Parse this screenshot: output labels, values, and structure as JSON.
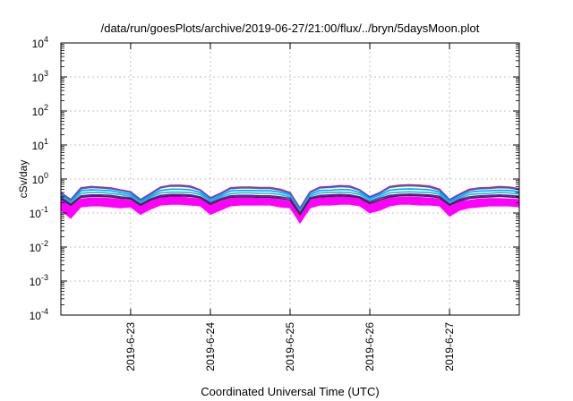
{
  "chart_data": {
    "type": "area",
    "title": "/data/run/goesPlots/archive/2019-06-27/21:00/flux/../bryn/5daysMoon.plot",
    "xlabel": "Coordinated Universal Time (UTC)",
    "ylabel": "cSv/day",
    "y_scale": "log",
    "y_ticks": [
      {
        "base": "10",
        "exp": "-4"
      },
      {
        "base": "10",
        "exp": "-3"
      },
      {
        "base": "10",
        "exp": "-2"
      },
      {
        "base": "10",
        "exp": "-1"
      },
      {
        "base": "10",
        "exp": "0"
      },
      {
        "base": "10",
        "exp": "1"
      },
      {
        "base": "10",
        "exp": "2"
      },
      {
        "base": "10",
        "exp": "3"
      },
      {
        "base": "10",
        "exp": "4"
      }
    ],
    "ylim": [
      0.0001,
      10000
    ],
    "xlim": [
      "2019-06-22T03:00",
      "2019-06-27T21:00"
    ],
    "x_ticks": [
      "2019-6-23",
      "2019-6-24",
      "2019-6-25",
      "2019-6-26",
      "2019-6-27"
    ],
    "grid": true,
    "legend": "none",
    "x": [
      "2019-06-22T03:00",
      "2019-06-22T06:00",
      "2019-06-22T09:00",
      "2019-06-22T12:00",
      "2019-06-22T15:00",
      "2019-06-22T18:00",
      "2019-06-22T21:00",
      "2019-06-23T00:00",
      "2019-06-23T03:00",
      "2019-06-23T06:00",
      "2019-06-23T09:00",
      "2019-06-23T12:00",
      "2019-06-23T15:00",
      "2019-06-23T18:00",
      "2019-06-23T21:00",
      "2019-06-24T00:00",
      "2019-06-24T03:00",
      "2019-06-24T06:00",
      "2019-06-24T09:00",
      "2019-06-24T12:00",
      "2019-06-24T15:00",
      "2019-06-24T18:00",
      "2019-06-24T21:00",
      "2019-06-25T00:00",
      "2019-06-25T03:00",
      "2019-06-25T06:00",
      "2019-06-25T09:00",
      "2019-06-25T12:00",
      "2019-06-25T15:00",
      "2019-06-25T18:00",
      "2019-06-25T21:00",
      "2019-06-26T00:00",
      "2019-06-26T03:00",
      "2019-06-26T06:00",
      "2019-06-26T09:00",
      "2019-06-26T12:00",
      "2019-06-26T15:00",
      "2019-06-26T18:00",
      "2019-06-26T21:00",
      "2019-06-27T00:00",
      "2019-06-27T03:00",
      "2019-06-27T06:00",
      "2019-06-27T09:00",
      "2019-06-27T12:00",
      "2019-06-27T15:00",
      "2019-06-27T18:00",
      "2019-06-27T21:00"
    ],
    "band": {
      "color": "#ff00ff",
      "lower": [
        0.12,
        0.07,
        0.15,
        0.16,
        0.16,
        0.15,
        0.14,
        0.15,
        0.09,
        0.13,
        0.17,
        0.18,
        0.18,
        0.17,
        0.16,
        0.09,
        0.12,
        0.16,
        0.17,
        0.17,
        0.17,
        0.17,
        0.15,
        0.14,
        0.05,
        0.14,
        0.17,
        0.17,
        0.18,
        0.18,
        0.16,
        0.1,
        0.12,
        0.16,
        0.18,
        0.18,
        0.17,
        0.17,
        0.16,
        0.08,
        0.12,
        0.14,
        0.15,
        0.16,
        0.16,
        0.16,
        0.15
      ],
      "upper": [
        0.24,
        0.16,
        0.26,
        0.28,
        0.28,
        0.27,
        0.25,
        0.24,
        0.16,
        0.22,
        0.28,
        0.3,
        0.3,
        0.28,
        0.26,
        0.17,
        0.22,
        0.27,
        0.28,
        0.28,
        0.27,
        0.27,
        0.25,
        0.22,
        0.1,
        0.24,
        0.28,
        0.29,
        0.3,
        0.29,
        0.26,
        0.18,
        0.22,
        0.28,
        0.29,
        0.3,
        0.29,
        0.28,
        0.26,
        0.16,
        0.22,
        0.24,
        0.26,
        0.27,
        0.27,
        0.26,
        0.25
      ]
    },
    "series": [
      {
        "color": "#ff2020",
        "values": [
          0.4,
          0.25,
          0.55,
          0.6,
          0.58,
          0.55,
          0.48,
          0.42,
          0.25,
          0.38,
          0.58,
          0.65,
          0.66,
          0.62,
          0.48,
          0.28,
          0.38,
          0.55,
          0.58,
          0.58,
          0.56,
          0.56,
          0.5,
          0.4,
          0.14,
          0.42,
          0.58,
          0.6,
          0.64,
          0.62,
          0.48,
          0.3,
          0.4,
          0.6,
          0.66,
          0.68,
          0.66,
          0.62,
          0.5,
          0.25,
          0.36,
          0.5,
          0.55,
          0.56,
          0.6,
          0.58,
          0.52
        ]
      },
      {
        "color": "#2060ff",
        "values": [
          0.38,
          0.24,
          0.52,
          0.57,
          0.55,
          0.52,
          0.46,
          0.4,
          0.24,
          0.36,
          0.55,
          0.62,
          0.62,
          0.58,
          0.46,
          0.27,
          0.36,
          0.52,
          0.55,
          0.55,
          0.53,
          0.53,
          0.47,
          0.38,
          0.13,
          0.4,
          0.55,
          0.57,
          0.6,
          0.58,
          0.46,
          0.29,
          0.38,
          0.57,
          0.62,
          0.64,
          0.62,
          0.58,
          0.47,
          0.24,
          0.34,
          0.47,
          0.52,
          0.53,
          0.56,
          0.55,
          0.49
        ]
      },
      {
        "color": "#00a0ff",
        "values": [
          0.35,
          0.22,
          0.45,
          0.48,
          0.47,
          0.45,
          0.4,
          0.35,
          0.22,
          0.32,
          0.46,
          0.5,
          0.5,
          0.48,
          0.4,
          0.24,
          0.32,
          0.44,
          0.46,
          0.46,
          0.45,
          0.45,
          0.41,
          0.34,
          0.12,
          0.35,
          0.46,
          0.47,
          0.49,
          0.48,
          0.4,
          0.26,
          0.34,
          0.47,
          0.5,
          0.51,
          0.5,
          0.48,
          0.41,
          0.22,
          0.3,
          0.41,
          0.44,
          0.45,
          0.47,
          0.46,
          0.42
        ]
      },
      {
        "color": "#00d0a0",
        "values": [
          0.32,
          0.2,
          0.38,
          0.4,
          0.4,
          0.38,
          0.35,
          0.31,
          0.2,
          0.29,
          0.39,
          0.41,
          0.41,
          0.4,
          0.35,
          0.22,
          0.29,
          0.37,
          0.39,
          0.39,
          0.38,
          0.38,
          0.35,
          0.3,
          0.11,
          0.31,
          0.39,
          0.4,
          0.41,
          0.4,
          0.35,
          0.23,
          0.3,
          0.39,
          0.41,
          0.42,
          0.41,
          0.4,
          0.36,
          0.2,
          0.27,
          0.35,
          0.37,
          0.38,
          0.4,
          0.39,
          0.36
        ]
      },
      {
        "color": "#9000d0",
        "values": [
          0.29,
          0.18,
          0.32,
          0.34,
          0.34,
          0.33,
          0.3,
          0.28,
          0.18,
          0.26,
          0.33,
          0.35,
          0.35,
          0.34,
          0.3,
          0.2,
          0.26,
          0.32,
          0.33,
          0.33,
          0.32,
          0.32,
          0.3,
          0.27,
          0.1,
          0.28,
          0.33,
          0.34,
          0.35,
          0.34,
          0.3,
          0.21,
          0.27,
          0.33,
          0.35,
          0.36,
          0.35,
          0.34,
          0.31,
          0.18,
          0.25,
          0.3,
          0.32,
          0.33,
          0.34,
          0.33,
          0.31
        ]
      },
      {
        "color": "#303030",
        "values": [
          0.26,
          0.17,
          0.29,
          0.31,
          0.31,
          0.3,
          0.27,
          0.26,
          0.17,
          0.24,
          0.3,
          0.32,
          0.32,
          0.31,
          0.28,
          0.18,
          0.24,
          0.29,
          0.3,
          0.3,
          0.29,
          0.29,
          0.27,
          0.24,
          0.09,
          0.26,
          0.3,
          0.31,
          0.32,
          0.31,
          0.28,
          0.19,
          0.24,
          0.3,
          0.32,
          0.33,
          0.32,
          0.31,
          0.28,
          0.17,
          0.23,
          0.27,
          0.29,
          0.3,
          0.31,
          0.3,
          0.28
        ]
      }
    ]
  }
}
